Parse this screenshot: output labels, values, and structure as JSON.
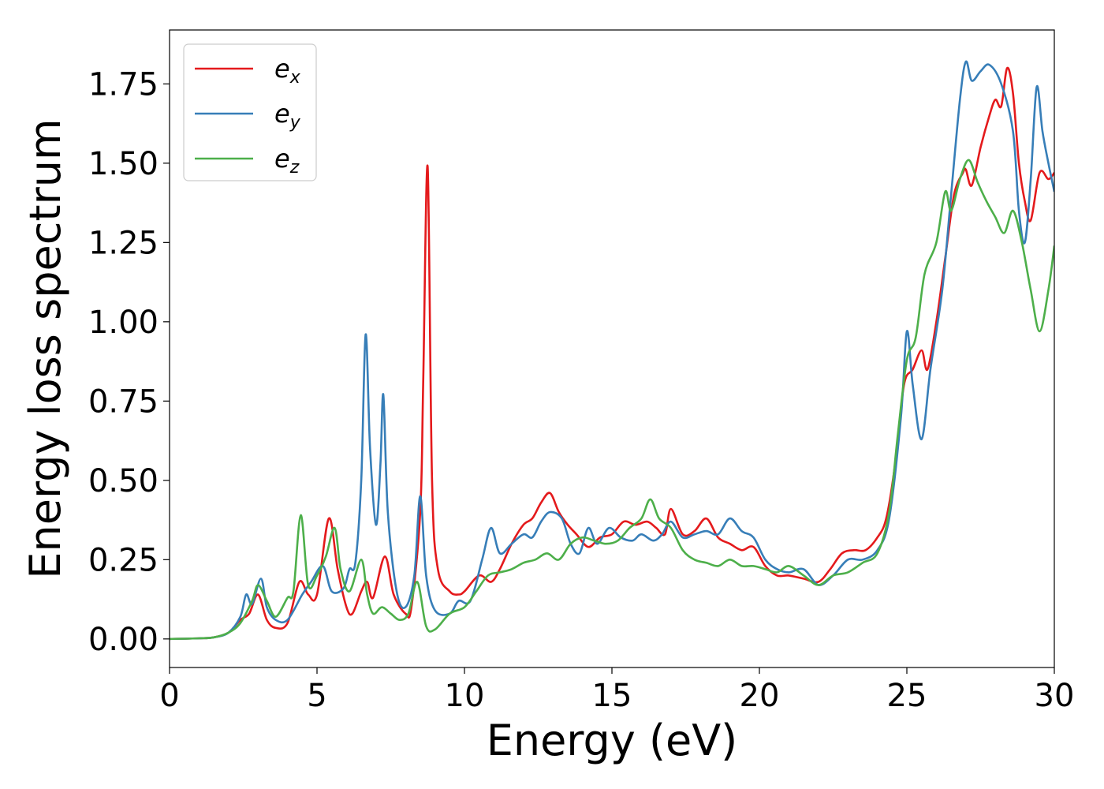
{
  "chart_data": {
    "type": "line",
    "title": "",
    "xlabel": "Energy (eV)",
    "ylabel": "Energy loss spectrum",
    "xlim": [
      0,
      30
    ],
    "ylim": [
      -0.09,
      1.92
    ],
    "xticks": [
      0,
      5,
      10,
      15,
      20,
      25,
      30
    ],
    "yticks": [
      0.0,
      0.25,
      0.5,
      0.75,
      1.0,
      1.25,
      1.5,
      1.75
    ],
    "xtick_labels": [
      "0",
      "5",
      "10",
      "15",
      "20",
      "25",
      "30"
    ],
    "ytick_labels": [
      "0.00",
      "0.25",
      "0.50",
      "0.75",
      "1.00",
      "1.25",
      "1.50",
      "1.75"
    ],
    "grid": false,
    "legend_position": "top-left",
    "series": [
      {
        "name": "e_x",
        "label_base": "e",
        "label_sub": "x",
        "color": "#e41a1c",
        "points": [
          [
            0,
            0
          ],
          [
            1,
            0.002
          ],
          [
            1.5,
            0.005
          ],
          [
            2,
            0.02
          ],
          [
            2.4,
            0.06
          ],
          [
            2.7,
            0.08
          ],
          [
            3.0,
            0.14
          ],
          [
            3.3,
            0.06
          ],
          [
            3.6,
            0.035
          ],
          [
            4.0,
            0.05
          ],
          [
            4.4,
            0.18
          ],
          [
            4.7,
            0.14
          ],
          [
            5.0,
            0.14
          ],
          [
            5.4,
            0.38
          ],
          [
            5.7,
            0.22
          ],
          [
            6.0,
            0.1
          ],
          [
            6.2,
            0.08
          ],
          [
            6.5,
            0.15
          ],
          [
            6.7,
            0.18
          ],
          [
            6.9,
            0.13
          ],
          [
            7.3,
            0.26
          ],
          [
            7.6,
            0.14
          ],
          [
            8.0,
            0.08
          ],
          [
            8.2,
            0.1
          ],
          [
            8.5,
            0.4
          ],
          [
            8.6,
            0.8
          ],
          [
            8.75,
            1.49
          ],
          [
            8.9,
            0.5
          ],
          [
            9.1,
            0.22
          ],
          [
            9.5,
            0.15
          ],
          [
            9.8,
            0.14
          ],
          [
            10.0,
            0.15
          ],
          [
            10.5,
            0.2
          ],
          [
            10.9,
            0.18
          ],
          [
            11.2,
            0.22
          ],
          [
            11.6,
            0.3
          ],
          [
            12.0,
            0.36
          ],
          [
            12.3,
            0.38
          ],
          [
            12.6,
            0.43
          ],
          [
            12.9,
            0.46
          ],
          [
            13.2,
            0.4
          ],
          [
            13.5,
            0.36
          ],
          [
            13.8,
            0.33
          ],
          [
            14.2,
            0.29
          ],
          [
            14.6,
            0.32
          ],
          [
            15.0,
            0.33
          ],
          [
            15.4,
            0.37
          ],
          [
            15.8,
            0.36
          ],
          [
            16.2,
            0.37
          ],
          [
            16.5,
            0.35
          ],
          [
            16.8,
            0.33
          ],
          [
            17.0,
            0.41
          ],
          [
            17.4,
            0.33
          ],
          [
            17.8,
            0.34
          ],
          [
            18.2,
            0.38
          ],
          [
            18.6,
            0.32
          ],
          [
            19.0,
            0.3
          ],
          [
            19.4,
            0.28
          ],
          [
            19.8,
            0.29
          ],
          [
            20.2,
            0.23
          ],
          [
            20.6,
            0.2
          ],
          [
            21.0,
            0.2
          ],
          [
            21.5,
            0.19
          ],
          [
            22.0,
            0.18
          ],
          [
            22.4,
            0.22
          ],
          [
            22.8,
            0.27
          ],
          [
            23.2,
            0.28
          ],
          [
            23.6,
            0.28
          ],
          [
            24.0,
            0.32
          ],
          [
            24.3,
            0.38
          ],
          [
            24.6,
            0.55
          ],
          [
            24.9,
            0.8
          ],
          [
            25.2,
            0.85
          ],
          [
            25.5,
            0.91
          ],
          [
            25.7,
            0.85
          ],
          [
            26.0,
            1.0
          ],
          [
            26.3,
            1.2
          ],
          [
            26.6,
            1.4
          ],
          [
            26.9,
            1.47
          ],
          [
            27.0,
            1.48
          ],
          [
            27.2,
            1.43
          ],
          [
            27.5,
            1.55
          ],
          [
            27.8,
            1.65
          ],
          [
            28.0,
            1.7
          ],
          [
            28.2,
            1.68
          ],
          [
            28.4,
            1.8
          ],
          [
            28.6,
            1.72
          ],
          [
            28.8,
            1.5
          ],
          [
            29.0,
            1.38
          ],
          [
            29.2,
            1.32
          ],
          [
            29.5,
            1.47
          ],
          [
            29.8,
            1.45
          ],
          [
            30.0,
            1.47
          ]
        ]
      },
      {
        "name": "e_y",
        "label_base": "e",
        "label_sub": "y",
        "color": "#377eb8",
        "points": [
          [
            0,
            0
          ],
          [
            1,
            0.002
          ],
          [
            1.5,
            0.005
          ],
          [
            2,
            0.02
          ],
          [
            2.4,
            0.07
          ],
          [
            2.6,
            0.14
          ],
          [
            2.8,
            0.11
          ],
          [
            3.1,
            0.19
          ],
          [
            3.3,
            0.1
          ],
          [
            3.6,
            0.06
          ],
          [
            4.0,
            0.06
          ],
          [
            4.5,
            0.14
          ],
          [
            4.8,
            0.18
          ],
          [
            5.2,
            0.23
          ],
          [
            5.5,
            0.15
          ],
          [
            5.9,
            0.16
          ],
          [
            6.1,
            0.22
          ],
          [
            6.3,
            0.24
          ],
          [
            6.5,
            0.5
          ],
          [
            6.65,
            0.96
          ],
          [
            6.8,
            0.6
          ],
          [
            7.0,
            0.36
          ],
          [
            7.15,
            0.55
          ],
          [
            7.25,
            0.77
          ],
          [
            7.4,
            0.4
          ],
          [
            7.7,
            0.15
          ],
          [
            8.0,
            0.1
          ],
          [
            8.3,
            0.2
          ],
          [
            8.5,
            0.45
          ],
          [
            8.7,
            0.2
          ],
          [
            9.0,
            0.09
          ],
          [
            9.5,
            0.08
          ],
          [
            9.8,
            0.12
          ],
          [
            10.2,
            0.12
          ],
          [
            10.6,
            0.25
          ],
          [
            10.9,
            0.35
          ],
          [
            11.2,
            0.27
          ],
          [
            11.6,
            0.3
          ],
          [
            12.0,
            0.33
          ],
          [
            12.3,
            0.32
          ],
          [
            12.6,
            0.37
          ],
          [
            12.9,
            0.4
          ],
          [
            13.3,
            0.38
          ],
          [
            13.6,
            0.3
          ],
          [
            13.9,
            0.27
          ],
          [
            14.2,
            0.35
          ],
          [
            14.5,
            0.3
          ],
          [
            14.9,
            0.35
          ],
          [
            15.3,
            0.32
          ],
          [
            15.7,
            0.31
          ],
          [
            16.0,
            0.33
          ],
          [
            16.4,
            0.31
          ],
          [
            16.7,
            0.33
          ],
          [
            17.0,
            0.37
          ],
          [
            17.4,
            0.32
          ],
          [
            17.8,
            0.33
          ],
          [
            18.2,
            0.34
          ],
          [
            18.6,
            0.33
          ],
          [
            19.0,
            0.38
          ],
          [
            19.4,
            0.34
          ],
          [
            19.8,
            0.32
          ],
          [
            20.2,
            0.25
          ],
          [
            20.6,
            0.22
          ],
          [
            21.0,
            0.21
          ],
          [
            21.5,
            0.22
          ],
          [
            22.0,
            0.17
          ],
          [
            22.5,
            0.2
          ],
          [
            23.0,
            0.25
          ],
          [
            23.5,
            0.25
          ],
          [
            24.0,
            0.28
          ],
          [
            24.4,
            0.38
          ],
          [
            24.8,
            0.7
          ],
          [
            25.0,
            0.97
          ],
          [
            25.2,
            0.8
          ],
          [
            25.5,
            0.63
          ],
          [
            25.8,
            0.85
          ],
          [
            26.2,
            1.1
          ],
          [
            26.5,
            1.4
          ],
          [
            26.8,
            1.7
          ],
          [
            27.0,
            1.82
          ],
          [
            27.2,
            1.76
          ],
          [
            27.5,
            1.79
          ],
          [
            27.8,
            1.81
          ],
          [
            28.2,
            1.75
          ],
          [
            28.6,
            1.6
          ],
          [
            28.8,
            1.35
          ],
          [
            29.0,
            1.25
          ],
          [
            29.2,
            1.45
          ],
          [
            29.4,
            1.74
          ],
          [
            29.6,
            1.6
          ],
          [
            29.8,
            1.5
          ],
          [
            30.0,
            1.41
          ]
        ]
      },
      {
        "name": "e_z",
        "label_base": "e",
        "label_sub": "z",
        "color": "#4daf4a",
        "points": [
          [
            0,
            0
          ],
          [
            1,
            0.002
          ],
          [
            1.5,
            0.005
          ],
          [
            2,
            0.02
          ],
          [
            2.4,
            0.05
          ],
          [
            2.8,
            0.12
          ],
          [
            3.0,
            0.17
          ],
          [
            3.3,
            0.12
          ],
          [
            3.6,
            0.07
          ],
          [
            4.0,
            0.13
          ],
          [
            4.2,
            0.15
          ],
          [
            4.45,
            0.39
          ],
          [
            4.7,
            0.17
          ],
          [
            5.0,
            0.2
          ],
          [
            5.3,
            0.26
          ],
          [
            5.6,
            0.35
          ],
          [
            5.8,
            0.22
          ],
          [
            6.1,
            0.15
          ],
          [
            6.5,
            0.25
          ],
          [
            6.7,
            0.14
          ],
          [
            6.9,
            0.08
          ],
          [
            7.2,
            0.1
          ],
          [
            7.5,
            0.08
          ],
          [
            7.8,
            0.06
          ],
          [
            8.1,
            0.08
          ],
          [
            8.4,
            0.18
          ],
          [
            8.7,
            0.04
          ],
          [
            9.0,
            0.03
          ],
          [
            9.5,
            0.08
          ],
          [
            10.0,
            0.1
          ],
          [
            10.4,
            0.15
          ],
          [
            10.8,
            0.2
          ],
          [
            11.2,
            0.21
          ],
          [
            11.6,
            0.22
          ],
          [
            12.0,
            0.24
          ],
          [
            12.4,
            0.25
          ],
          [
            12.8,
            0.27
          ],
          [
            13.2,
            0.25
          ],
          [
            13.6,
            0.3
          ],
          [
            14.0,
            0.32
          ],
          [
            14.4,
            0.31
          ],
          [
            14.8,
            0.3
          ],
          [
            15.2,
            0.31
          ],
          [
            15.6,
            0.35
          ],
          [
            16.0,
            0.38
          ],
          [
            16.3,
            0.44
          ],
          [
            16.6,
            0.38
          ],
          [
            17.0,
            0.35
          ],
          [
            17.4,
            0.28
          ],
          [
            17.8,
            0.25
          ],
          [
            18.2,
            0.24
          ],
          [
            18.6,
            0.23
          ],
          [
            19.0,
            0.25
          ],
          [
            19.4,
            0.23
          ],
          [
            19.8,
            0.23
          ],
          [
            20.2,
            0.22
          ],
          [
            20.6,
            0.21
          ],
          [
            21.0,
            0.23
          ],
          [
            21.5,
            0.2
          ],
          [
            22.0,
            0.17
          ],
          [
            22.5,
            0.2
          ],
          [
            23.0,
            0.21
          ],
          [
            23.5,
            0.24
          ],
          [
            24.0,
            0.27
          ],
          [
            24.4,
            0.4
          ],
          [
            24.7,
            0.65
          ],
          [
            25.0,
            0.88
          ],
          [
            25.3,
            0.95
          ],
          [
            25.6,
            1.15
          ],
          [
            26.0,
            1.25
          ],
          [
            26.3,
            1.41
          ],
          [
            26.5,
            1.35
          ],
          [
            26.8,
            1.45
          ],
          [
            27.1,
            1.51
          ],
          [
            27.4,
            1.44
          ],
          [
            27.7,
            1.38
          ],
          [
            28.0,
            1.33
          ],
          [
            28.3,
            1.28
          ],
          [
            28.6,
            1.35
          ],
          [
            28.9,
            1.25
          ],
          [
            29.2,
            1.1
          ],
          [
            29.5,
            0.97
          ],
          [
            29.8,
            1.1
          ],
          [
            30.0,
            1.24
          ]
        ]
      }
    ]
  }
}
